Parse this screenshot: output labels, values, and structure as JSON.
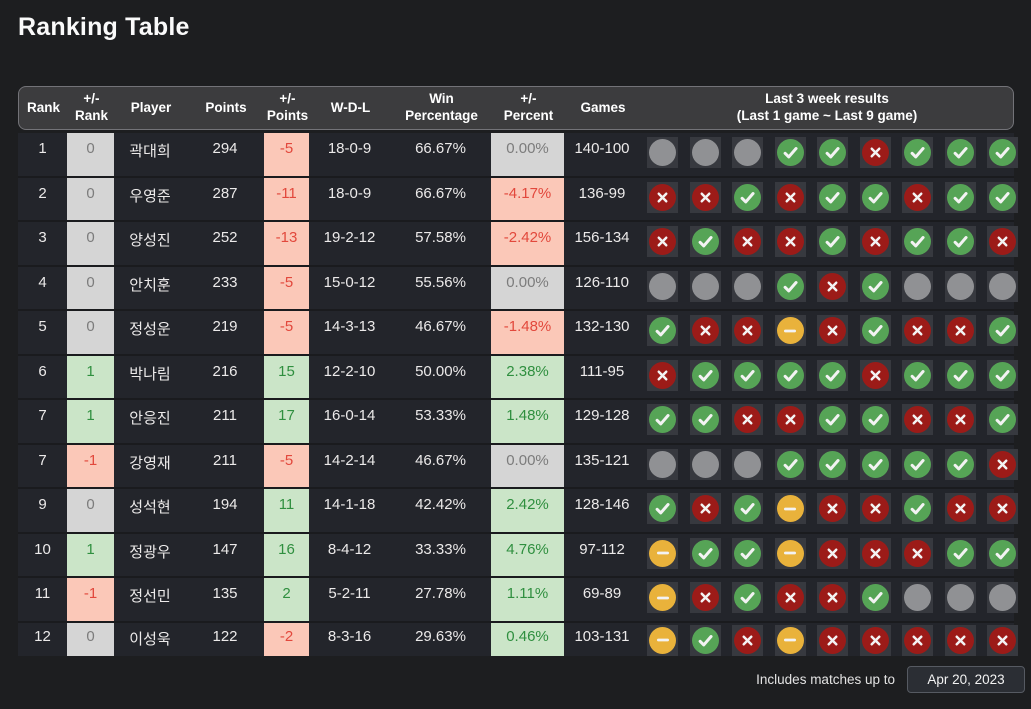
{
  "title": "Ranking Table",
  "header": {
    "columns": [
      {
        "key": "rank",
        "label": "Rank"
      },
      {
        "key": "rank-change",
        "label": "+/-\nRank"
      },
      {
        "key": "player",
        "label": "Player"
      },
      {
        "key": "points",
        "label": "Points"
      },
      {
        "key": "points-change",
        "label": "+/-\nPoints"
      },
      {
        "key": "wdl",
        "label": "W-D-L"
      },
      {
        "key": "win-percentage",
        "label": "Win\nPercentage"
      },
      {
        "key": "percent-change",
        "label": "+/-\nPercent"
      },
      {
        "key": "games",
        "label": "Games"
      },
      {
        "key": "last-results",
        "label": "Last 3 week results\n(Last 1 game ~ Last 9 game)"
      }
    ]
  },
  "rows": [
    {
      "rank": "1",
      "rank_change": {
        "text": "0",
        "variant": "zero"
      },
      "player": "곽대희",
      "points": "294",
      "points_change": {
        "text": "-5",
        "variant": "down"
      },
      "wdl": "18-0-9",
      "win_pct": "66.67%",
      "pct_change": {
        "text": "0.00%",
        "variant": "zero"
      },
      "games": "140-100",
      "results": [
        "none",
        "none",
        "none",
        "win",
        "win",
        "loss",
        "win",
        "win",
        "win"
      ]
    },
    {
      "rank": "2",
      "rank_change": {
        "text": "0",
        "variant": "zero"
      },
      "player": "우영준",
      "points": "287",
      "points_change": {
        "text": "-11",
        "variant": "down"
      },
      "wdl": "18-0-9",
      "win_pct": "66.67%",
      "pct_change": {
        "text": "-4.17%",
        "variant": "down"
      },
      "games": "136-99",
      "results": [
        "loss",
        "loss",
        "win",
        "loss",
        "win",
        "win",
        "loss",
        "win",
        "win"
      ]
    },
    {
      "rank": "3",
      "rank_change": {
        "text": "0",
        "variant": "zero"
      },
      "player": "양성진",
      "points": "252",
      "points_change": {
        "text": "-13",
        "variant": "down"
      },
      "wdl": "19-2-12",
      "win_pct": "57.58%",
      "pct_change": {
        "text": "-2.42%",
        "variant": "down"
      },
      "games": "156-134",
      "results": [
        "loss",
        "win",
        "loss",
        "loss",
        "win",
        "loss",
        "win",
        "win",
        "loss"
      ]
    },
    {
      "rank": "4",
      "rank_change": {
        "text": "0",
        "variant": "zero"
      },
      "player": "안치훈",
      "points": "233",
      "points_change": {
        "text": "-5",
        "variant": "down"
      },
      "wdl": "15-0-12",
      "win_pct": "55.56%",
      "pct_change": {
        "text": "0.00%",
        "variant": "zero"
      },
      "games": "126-110",
      "results": [
        "none",
        "none",
        "none",
        "win",
        "loss",
        "win",
        "none",
        "none",
        "none"
      ]
    },
    {
      "rank": "5",
      "rank_change": {
        "text": "0",
        "variant": "zero"
      },
      "player": "정성운",
      "points": "219",
      "points_change": {
        "text": "-5",
        "variant": "down"
      },
      "wdl": "14-3-13",
      "win_pct": "46.67%",
      "pct_change": {
        "text": "-1.48%",
        "variant": "down"
      },
      "games": "132-130",
      "results": [
        "win",
        "loss",
        "loss",
        "draw",
        "loss",
        "win",
        "loss",
        "loss",
        "win"
      ]
    },
    {
      "rank": "6",
      "rank_change": {
        "text": "1",
        "variant": "up"
      },
      "player": "박나림",
      "points": "216",
      "points_change": {
        "text": "15",
        "variant": "up"
      },
      "wdl": "12-2-10",
      "win_pct": "50.00%",
      "pct_change": {
        "text": "2.38%",
        "variant": "up"
      },
      "games": "111-95",
      "results": [
        "loss",
        "win",
        "win",
        "win",
        "win",
        "loss",
        "win",
        "win",
        "win"
      ]
    },
    {
      "rank": "7",
      "rank_change": {
        "text": "1",
        "variant": "up"
      },
      "player": "안응진",
      "points": "211",
      "points_change": {
        "text": "17",
        "variant": "up"
      },
      "wdl": "16-0-14",
      "win_pct": "53.33%",
      "pct_change": {
        "text": "1.48%",
        "variant": "up"
      },
      "games": "129-128",
      "results": [
        "win",
        "win",
        "loss",
        "loss",
        "win",
        "win",
        "loss",
        "loss",
        "win"
      ]
    },
    {
      "rank": "7",
      "rank_change": {
        "text": "-1",
        "variant": "down"
      },
      "player": "강영재",
      "points": "211",
      "points_change": {
        "text": "-5",
        "variant": "down"
      },
      "wdl": "14-2-14",
      "win_pct": "46.67%",
      "pct_change": {
        "text": "0.00%",
        "variant": "zero"
      },
      "games": "135-121",
      "results": [
        "none",
        "none",
        "none",
        "win",
        "win",
        "win",
        "win",
        "win",
        "loss"
      ]
    },
    {
      "rank": "9",
      "rank_change": {
        "text": "0",
        "variant": "zero"
      },
      "player": "성석현",
      "points": "194",
      "points_change": {
        "text": "11",
        "variant": "up"
      },
      "wdl": "14-1-18",
      "win_pct": "42.42%",
      "pct_change": {
        "text": "2.42%",
        "variant": "up"
      },
      "games": "128-146",
      "results": [
        "win",
        "loss",
        "win",
        "draw",
        "loss",
        "loss",
        "win",
        "loss",
        "loss"
      ]
    },
    {
      "rank": "10",
      "rank_change": {
        "text": "1",
        "variant": "up"
      },
      "player": "정광우",
      "points": "147",
      "points_change": {
        "text": "16",
        "variant": "up"
      },
      "wdl": "8-4-12",
      "win_pct": "33.33%",
      "pct_change": {
        "text": "4.76%",
        "variant": "up"
      },
      "games": "97-112",
      "results": [
        "draw",
        "win",
        "win",
        "draw",
        "loss",
        "loss",
        "loss",
        "win",
        "win"
      ]
    },
    {
      "rank": "11",
      "rank_change": {
        "text": "-1",
        "variant": "down"
      },
      "player": "정선민",
      "points": "135",
      "points_change": {
        "text": "2",
        "variant": "up"
      },
      "wdl": "5-2-11",
      "win_pct": "27.78%",
      "pct_change": {
        "text": "1.11%",
        "variant": "up"
      },
      "games": "69-89",
      "results": [
        "draw",
        "loss",
        "win",
        "loss",
        "loss",
        "win",
        "none",
        "none",
        "none"
      ]
    },
    {
      "rank": "12",
      "rank_change": {
        "text": "0",
        "variant": "zero"
      },
      "player": "이성욱",
      "points": "122",
      "points_change": {
        "text": "-2",
        "variant": "down"
      },
      "wdl": "8-3-16",
      "win_pct": "29.63%",
      "pct_change": {
        "text": "0.46%",
        "variant": "up"
      },
      "games": "103-131",
      "results": [
        "draw",
        "win",
        "loss",
        "draw",
        "loss",
        "loss",
        "loss",
        "loss",
        "loss"
      ]
    }
  ],
  "footer": {
    "label": "Includes matches up to",
    "date": "Apr 20, 2023"
  },
  "theme": {
    "win_color": "#56a456",
    "loss_color": "#9c1b18",
    "draw_color": "#e9b23b",
    "none_color": "#909194",
    "up_bg": "#cbe5c8",
    "up_text": "#2f8f3f",
    "down_bg": "#fbc8b8",
    "down_text": "#e2483c",
    "zero_bg": "#d5d5d5",
    "zero_text": "#7c7c7c"
  }
}
